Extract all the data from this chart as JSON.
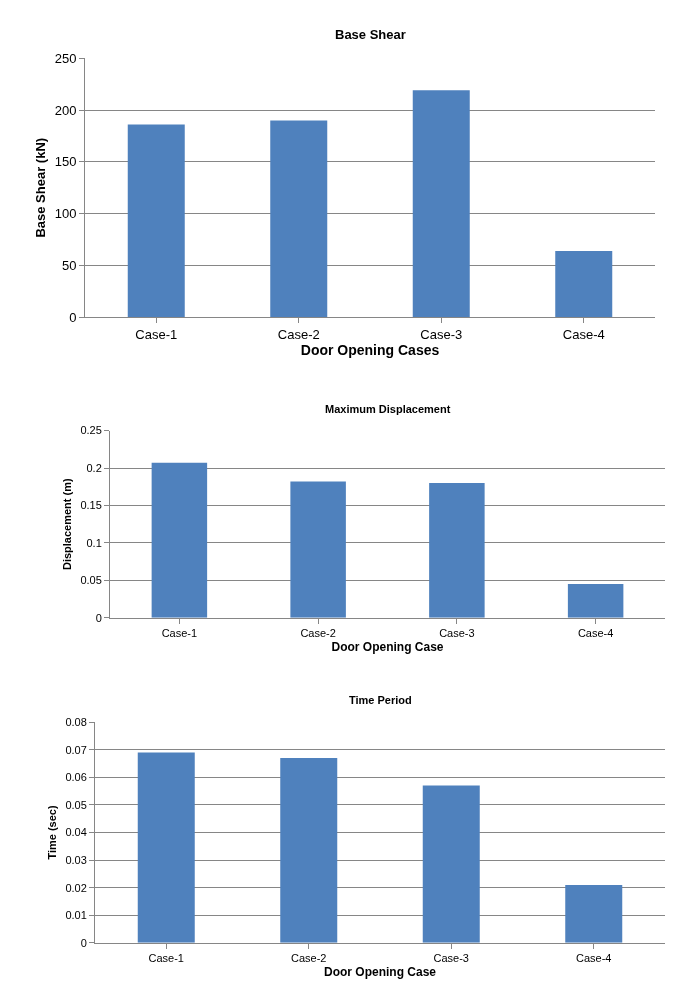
{
  "chart_data": [
    {
      "type": "bar",
      "title": "Base Shear",
      "xlabel": "Door Opening Cases",
      "ylabel": "Base Shear (kN)",
      "categories": [
        "Case-1",
        "Case-2",
        "Case-3",
        "Case-4"
      ],
      "values": [
        186,
        190,
        219,
        64
      ],
      "color": "#4f81bd",
      "ylim": [
        0,
        250
      ],
      "yticks": [
        0,
        50,
        100,
        150,
        200,
        250
      ],
      "grid": "y"
    },
    {
      "type": "bar",
      "title": "Maximum Displacement",
      "xlabel": "Door Opening Case",
      "ylabel": "Displacement (m)",
      "categories": [
        "Case-1",
        "Case-2",
        "Case-3",
        "Case-4"
      ],
      "values": [
        0.207,
        0.182,
        0.18,
        0.045
      ],
      "color": "#4f81bd",
      "ylim": [
        0,
        0.25
      ],
      "yticks": [
        0,
        0.05,
        0.1,
        0.15,
        0.2,
        0.25
      ],
      "grid": "y"
    },
    {
      "type": "bar",
      "title": "Time Period",
      "xlabel": "Door Opening Case",
      "ylabel": "Time (sec)",
      "categories": [
        "Case-1",
        "Case-2",
        "Case-3",
        "Case-4"
      ],
      "values": [
        0.069,
        0.067,
        0.057,
        0.021
      ],
      "color": "#4f81bd",
      "ylim": [
        0,
        0.08
      ],
      "yticks": [
        0,
        0.01,
        0.02,
        0.03,
        0.04,
        0.05,
        0.06,
        0.07,
        0.08
      ],
      "grid": "y"
    }
  ]
}
